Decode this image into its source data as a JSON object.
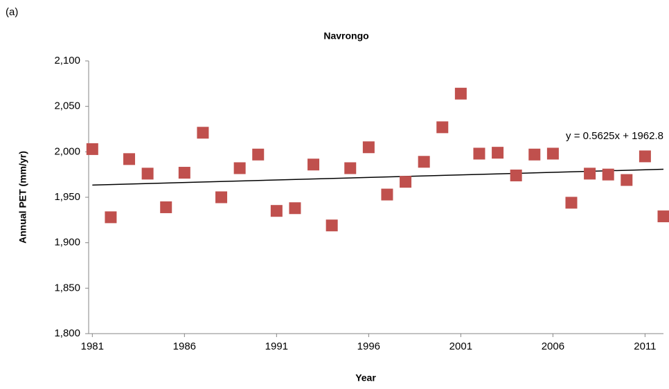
{
  "panel_label": "(a)",
  "chart_data": {
    "type": "scatter",
    "title": "Navrongo",
    "x_label": "Year",
    "y_label": "Annual PET (mm/yr)",
    "series": [
      {
        "color": "#c0504d",
        "x": [
          1981,
          1982,
          1983,
          1984,
          1985,
          1986,
          1987,
          1988,
          1989,
          1990,
          1991,
          1992,
          1993,
          1994,
          1995,
          1996,
          1997,
          1998,
          1999,
          2000,
          2001,
          2002,
          2003,
          2004,
          2005,
          2006,
          2007,
          2008,
          2009,
          2010,
          2011,
          2012
        ],
        "values": [
          2003,
          1928,
          1992,
          1976,
          1939,
          1977,
          2021,
          1950,
          1982,
          1997,
          1935,
          1938,
          1986,
          1919,
          1982,
          2005,
          1953,
          1967,
          1989,
          2027,
          2064,
          1998,
          1999,
          1974,
          1997,
          1998,
          1944,
          1976,
          1975,
          1969,
          1995,
          1929
        ]
      }
    ],
    "trendline": {
      "label": "y = 0.5625x + 1962.8",
      "color": "#000000",
      "x": [
        1981,
        2012
      ],
      "values": [
        1963.4,
        1980.8
      ]
    },
    "xlim": [
      1980.8,
      2012
    ],
    "xticks": [
      1981,
      1986,
      1991,
      1996,
      2001,
      2006,
      2011
    ],
    "ylim": [
      1800,
      2100
    ],
    "yticks": [
      {
        "value": 1800,
        "label": "1,800"
      },
      {
        "value": 1850,
        "label": "1,850"
      },
      {
        "value": 1900,
        "label": "1,900"
      },
      {
        "value": 1950,
        "label": "1,950"
      },
      {
        "value": 2000,
        "label": "2,000"
      },
      {
        "value": 2050,
        "label": "2,050"
      },
      {
        "value": 2100,
        "label": "2,100"
      }
    ],
    "grid": false
  }
}
